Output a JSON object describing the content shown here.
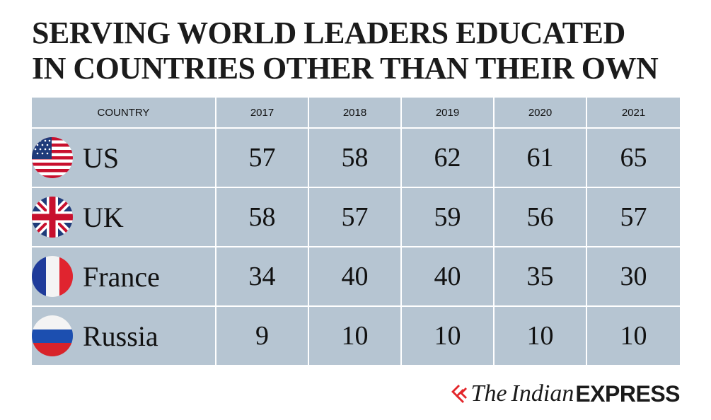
{
  "title": {
    "line1": "SERVING WORLD LEADERS EDUCATED",
    "line2": "IN COUNTRIES OTHER THAN THEIR OWN"
  },
  "chart_data": {
    "type": "table",
    "columns": [
      "COUNTRY",
      "2017",
      "2018",
      "2019",
      "2020",
      "2021"
    ],
    "rows": [
      {
        "country": "US",
        "flag_icon": "us-flag-icon",
        "values": [
          "57",
          "58",
          "62",
          "61",
          "65"
        ]
      },
      {
        "country": "UK",
        "flag_icon": "uk-flag-icon",
        "values": [
          "58",
          "57",
          "59",
          "56",
          "57"
        ]
      },
      {
        "country": "France",
        "flag_icon": "france-flag-icon",
        "values": [
          "34",
          "40",
          "40",
          "35",
          "30"
        ]
      },
      {
        "country": "Russia",
        "flag_icon": "russia-flag-icon",
        "values": [
          "9",
          "10",
          "10",
          "10",
          "10"
        ]
      }
    ]
  },
  "colors": {
    "table_background": "#b6c5d2",
    "grid_lines": "#ffffff",
    "brand_red": "#e3262b"
  },
  "brand": {
    "the": "The",
    "indian": "Indian",
    "express": "EXPRESS",
    "logo_icon": "flame-logo-icon"
  }
}
